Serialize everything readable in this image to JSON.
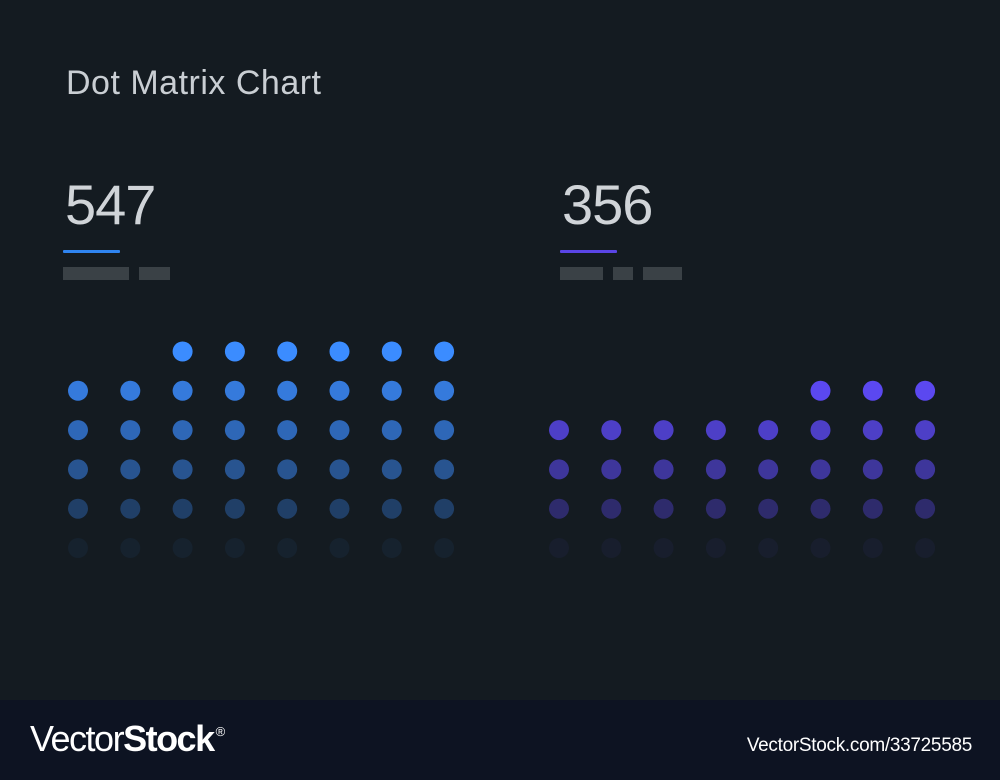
{
  "chart_data": {
    "type": "dot-matrix",
    "title": "Dot Matrix Chart",
    "panels": [
      {
        "name": "",
        "value": "547",
        "accent_color": "#3b8cff",
        "columns": 8,
        "column_dots": [
          5,
          5,
          6,
          6,
          6,
          6,
          6,
          6
        ]
      },
      {
        "name": "",
        "value": "356",
        "accent_color": "#5b48f0",
        "columns": 8,
        "column_dots": [
          4,
          4,
          4,
          4,
          4,
          5,
          5,
          5
        ]
      }
    ]
  },
  "footer": {
    "brand_light": "Vector",
    "brand_bold": "Stock",
    "brand_reg": "®",
    "image_id": "VectorStock.com/33725585"
  }
}
